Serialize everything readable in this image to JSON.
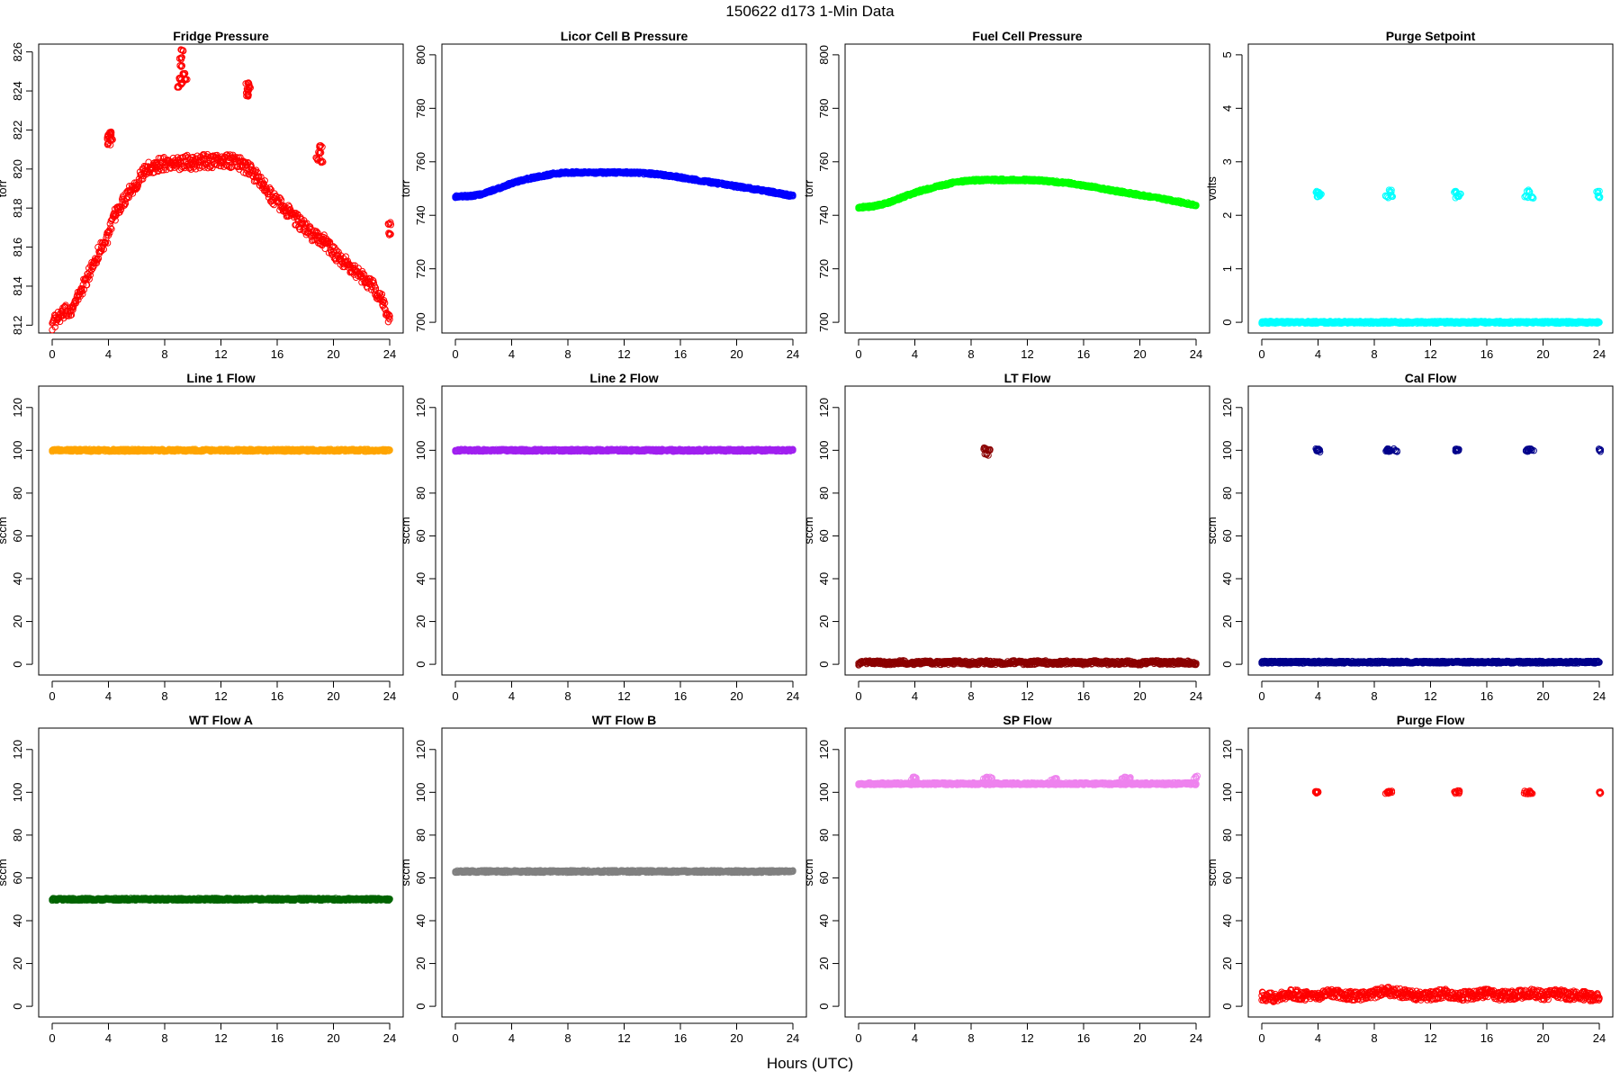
{
  "figure": {
    "title": "150622 d173 1-Min Data",
    "xlabel": "Hours (UTC)"
  },
  "chart_data": [
    {
      "type": "scatter",
      "title": "Fridge Pressure",
      "ylabel": "torr",
      "xlim": [
        0,
        24
      ],
      "ylim": [
        811.6,
        826.4
      ],
      "xticks": [
        0,
        4,
        8,
        12,
        16,
        20,
        24
      ],
      "yticks": [
        812,
        814,
        816,
        818,
        820,
        822,
        824,
        826
      ],
      "color": "#ff0000",
      "marker": "open-circle",
      "series": [
        {
          "x": [
            0.0,
            0.5,
            1.0,
            1.5,
            2.0,
            2.5,
            3.0,
            3.5,
            4.0,
            4.5,
            5.0,
            5.5,
            6.0,
            6.5,
            7.0,
            7.5,
            8.0,
            8.5,
            9.0,
            9.5,
            10.0,
            10.5,
            11.0,
            11.5,
            12.0,
            12.5,
            13.0,
            13.5,
            14.0,
            14.5,
            15.0,
            15.5,
            16.0,
            16.5,
            17.0,
            17.5,
            18.0,
            18.5,
            19.0,
            19.5,
            20.0,
            20.5,
            21.0,
            21.5,
            22.0,
            22.5,
            23.0,
            23.5,
            24.0
          ],
          "y": [
            812.1,
            812.4,
            812.7,
            812.9,
            813.7,
            814.4,
            815.3,
            816.0,
            816.6,
            817.7,
            818.3,
            818.9,
            819.3,
            819.8,
            820.1,
            820.2,
            820.3,
            820.3,
            820.3,
            820.4,
            820.3,
            820.4,
            820.4,
            820.4,
            820.4,
            820.4,
            820.4,
            820.2,
            820.0,
            819.6,
            819.2,
            818.7,
            818.3,
            818.0,
            817.7,
            817.3,
            817.0,
            816.6,
            816.5,
            816.2,
            815.8,
            815.4,
            815.1,
            814.8,
            814.5,
            814.2,
            813.8,
            813.2,
            812.3
          ]
        },
        {
          "x": [
            4.0,
            4.05,
            4.1,
            4.15,
            4.2,
            9.0,
            9.05,
            9.1,
            9.15,
            9.2,
            9.25,
            9.4,
            9.5,
            13.8,
            13.85,
            13.9,
            13.95,
            14.0,
            18.9,
            19.0,
            19.1,
            19.2,
            24.0,
            24.0
          ],
          "y": [
            821.3,
            821.6,
            821.8,
            821.5,
            821.9,
            824.2,
            824.6,
            825.3,
            825.7,
            826.1,
            824.4,
            824.9,
            824.6,
            823.9,
            824.1,
            824.4,
            823.8,
            824.2,
            820.5,
            820.8,
            821.2,
            820.4,
            817.2,
            816.7
          ]
        }
      ]
    },
    {
      "type": "scatter",
      "title": "Licor Cell B Pressure",
      "ylabel": "torr",
      "xlim": [
        0,
        24
      ],
      "ylim": [
        696,
        804
      ],
      "xticks": [
        0,
        4,
        8,
        12,
        16,
        20,
        24
      ],
      "yticks": [
        700,
        720,
        740,
        760,
        780,
        800
      ],
      "color": "#0000ff",
      "marker": "open-circle",
      "series": [
        {
          "x": [
            0,
            1,
            2,
            3,
            4,
            5,
            6,
            7,
            8,
            9,
            10,
            11,
            12,
            13,
            14,
            15,
            16,
            17,
            18,
            19,
            20,
            21,
            22,
            23,
            24
          ],
          "y": [
            747.0,
            747.2,
            748.0,
            750.0,
            752.0,
            753.5,
            754.5,
            755.5,
            756.0,
            756.0,
            756.0,
            756.0,
            756.0,
            755.8,
            755.5,
            755.0,
            754.2,
            753.3,
            752.5,
            751.7,
            750.8,
            750.0,
            749.2,
            748.2,
            747.2
          ]
        }
      ]
    },
    {
      "type": "scatter",
      "title": "Fuel Cell Pressure",
      "ylabel": "torr",
      "xlim": [
        0,
        24
      ],
      "ylim": [
        696,
        804
      ],
      "xticks": [
        0,
        4,
        8,
        12,
        16,
        20,
        24
      ],
      "yticks": [
        700,
        720,
        740,
        760,
        780,
        800
      ],
      "color": "#00ff00",
      "marker": "open-circle",
      "series": [
        {
          "x": [
            0,
            1,
            2,
            3,
            4,
            5,
            6,
            7,
            8,
            9,
            10,
            11,
            12,
            13,
            14,
            15,
            16,
            17,
            18,
            19,
            20,
            21,
            22,
            23,
            24
          ],
          "y": [
            743.0,
            743.3,
            744.5,
            746.5,
            748.5,
            750.0,
            751.3,
            752.5,
            753.0,
            753.2,
            753.2,
            753.3,
            753.2,
            753.0,
            752.5,
            752.0,
            751.2,
            750.3,
            749.3,
            748.5,
            747.6,
            746.8,
            745.8,
            744.8,
            743.8
          ]
        }
      ]
    },
    {
      "type": "scatter",
      "title": "Purge Setpoint",
      "ylabel": "volts",
      "xlim": [
        0,
        24
      ],
      "ylim": [
        -0.2,
        5.2
      ],
      "xticks": [
        0,
        4,
        8,
        12,
        16,
        20,
        24
      ],
      "yticks": [
        0,
        1,
        2,
        3,
        4,
        5
      ],
      "color": "#00ffff",
      "marker": "open-circle",
      "series": [
        {
          "x": [
            0,
            2,
            4,
            6,
            8,
            10,
            12,
            14,
            16,
            18,
            20,
            22,
            24
          ],
          "y": [
            0,
            0,
            0,
            0,
            0,
            0,
            0,
            0,
            0,
            0,
            0,
            0,
            0
          ]
        },
        {
          "x": [
            3.9,
            4.0,
            4.1,
            8.9,
            9.1,
            9.3,
            13.8,
            13.9,
            14.0,
            18.8,
            19.0,
            19.2,
            23.9,
            24.0
          ],
          "y": [
            2.45,
            2.35,
            2.4,
            2.35,
            2.45,
            2.35,
            2.45,
            2.35,
            2.4,
            2.35,
            2.45,
            2.35,
            2.45,
            2.35
          ]
        }
      ]
    },
    {
      "type": "scatter",
      "title": "Line 1 Flow",
      "ylabel": "sccm",
      "xlim": [
        0,
        24
      ],
      "ylim": [
        -5,
        130
      ],
      "xticks": [
        0,
        4,
        8,
        12,
        16,
        20,
        24
      ],
      "yticks": [
        0,
        20,
        40,
        60,
        80,
        100,
        120
      ],
      "color": "#ffa500",
      "marker": "open-circle",
      "series": [
        {
          "x": [
            0,
            2,
            4,
            6,
            8,
            10,
            12,
            14,
            16,
            18,
            20,
            22,
            24
          ],
          "y": [
            100,
            100,
            100,
            100,
            100,
            100,
            100,
            100,
            100,
            100,
            100,
            100,
            100
          ]
        }
      ]
    },
    {
      "type": "scatter",
      "title": "Line 2 Flow",
      "ylabel": "sccm",
      "xlim": [
        0,
        24
      ],
      "ylim": [
        -5,
        130
      ],
      "xticks": [
        0,
        4,
        8,
        12,
        16,
        20,
        24
      ],
      "yticks": [
        0,
        20,
        40,
        60,
        80,
        100,
        120
      ],
      "color": "#a020f0",
      "marker": "open-circle",
      "series": [
        {
          "x": [
            0,
            2,
            4,
            6,
            8,
            10,
            12,
            14,
            16,
            18,
            20,
            22,
            24
          ],
          "y": [
            100,
            100,
            100,
            100,
            100,
            100,
            100,
            100,
            100,
            100,
            100,
            100,
            100
          ]
        }
      ]
    },
    {
      "type": "scatter",
      "title": "LT Flow",
      "ylabel": "sccm",
      "xlim": [
        0,
        24
      ],
      "ylim": [
        -5,
        130
      ],
      "xticks": [
        0,
        4,
        8,
        12,
        16,
        20,
        24
      ],
      "yticks": [
        0,
        20,
        40,
        60,
        80,
        100,
        120
      ],
      "color": "#8b0000",
      "marker": "open-circle",
      "series": [
        {
          "x": [
            0,
            1,
            2,
            3,
            4,
            5,
            6,
            7,
            8,
            9,
            10,
            11,
            12,
            13,
            14,
            15,
            16,
            17,
            18,
            19,
            20,
            21,
            22,
            23,
            24
          ],
          "y": [
            0.5,
            1,
            0.5,
            1,
            0.5,
            1,
            0.5,
            1,
            0.5,
            1,
            0.5,
            1,
            0.5,
            1,
            0.5,
            1,
            0.5,
            1,
            0.5,
            1,
            0.5,
            1,
            0.5,
            1,
            0.5
          ]
        },
        {
          "x": [
            9.0,
            9.1,
            9.2
          ],
          "y": [
            101,
            98,
            100
          ]
        }
      ]
    },
    {
      "type": "scatter",
      "title": "Cal Flow",
      "ylabel": "sccm",
      "xlim": [
        0,
        24
      ],
      "ylim": [
        -5,
        130
      ],
      "xticks": [
        0,
        4,
        8,
        12,
        16,
        20,
        24
      ],
      "yticks": [
        0,
        20,
        40,
        60,
        80,
        100,
        120
      ],
      "color": "#00008b",
      "marker": "open-circle",
      "series": [
        {
          "x": [
            0,
            2,
            4,
            6,
            8,
            10,
            12,
            14,
            16,
            18,
            20,
            22,
            24
          ],
          "y": [
            1,
            1,
            1,
            1,
            1,
            1,
            1,
            1,
            1,
            1,
            1,
            1,
            1
          ]
        },
        {
          "x": [
            3.9,
            4.0,
            4.1,
            8.9,
            9.0,
            9.1,
            9.5,
            13.8,
            14.0,
            18.8,
            19.0,
            19.2,
            24.0
          ],
          "y": [
            100,
            100,
            100,
            100,
            100,
            100,
            100,
            100,
            100,
            100,
            100,
            100,
            100
          ]
        }
      ]
    },
    {
      "type": "scatter",
      "title": "WT Flow A",
      "ylabel": "sccm",
      "xlim": [
        0,
        24
      ],
      "ylim": [
        -5,
        130
      ],
      "xticks": [
        0,
        4,
        8,
        12,
        16,
        20,
        24
      ],
      "yticks": [
        0,
        20,
        40,
        60,
        80,
        100,
        120
      ],
      "color": "#006400",
      "marker": "open-circle",
      "series": [
        {
          "x": [
            0,
            2,
            4,
            6,
            8,
            10,
            12,
            14,
            16,
            18,
            20,
            22,
            24
          ],
          "y": [
            50,
            50,
            50,
            50,
            50,
            50,
            50,
            50,
            50,
            50,
            50,
            50,
            50
          ]
        }
      ]
    },
    {
      "type": "scatter",
      "title": "WT Flow B",
      "ylabel": "sccm",
      "xlim": [
        0,
        24
      ],
      "ylim": [
        -5,
        130
      ],
      "xticks": [
        0,
        4,
        8,
        12,
        16,
        20,
        24
      ],
      "yticks": [
        0,
        20,
        40,
        60,
        80,
        100,
        120
      ],
      "color": "#808080",
      "marker": "open-circle",
      "series": [
        {
          "x": [
            0,
            2,
            4,
            6,
            8,
            10,
            12,
            14,
            16,
            18,
            20,
            22,
            24
          ],
          "y": [
            63,
            63,
            63,
            63,
            63,
            63,
            63,
            63,
            63,
            63,
            63,
            63,
            63
          ]
        }
      ]
    },
    {
      "type": "scatter",
      "title": "SP Flow",
      "ylabel": "sccm",
      "xlim": [
        0,
        24
      ],
      "ylim": [
        -5,
        130
      ],
      "xticks": [
        0,
        4,
        8,
        12,
        16,
        20,
        24
      ],
      "yticks": [
        0,
        20,
        40,
        60,
        80,
        100,
        120
      ],
      "color": "#ee82ee",
      "marker": "open-circle",
      "series": [
        {
          "x": [
            0,
            2,
            4,
            6,
            8,
            10,
            12,
            14,
            16,
            18,
            20,
            22,
            24
          ],
          "y": [
            104,
            104,
            104,
            104,
            104,
            104,
            104,
            104,
            104,
            104,
            104,
            104,
            104
          ]
        },
        {
          "x": [
            3.9,
            4.1,
            9.0,
            9.2,
            9.4,
            13.8,
            14.0,
            18.8,
            19.0,
            19.2,
            24.0
          ],
          "y": [
            106.5,
            106.5,
            106.5,
            106.5,
            106.5,
            106,
            106.5,
            106.5,
            106.5,
            106.5,
            107
          ]
        }
      ]
    },
    {
      "type": "scatter",
      "title": "Purge Flow",
      "ylabel": "sccm",
      "xlim": [
        0,
        24
      ],
      "ylim": [
        -5,
        130
      ],
      "xticks": [
        0,
        4,
        8,
        12,
        16,
        20,
        24
      ],
      "yticks": [
        0,
        20,
        40,
        60,
        80,
        100,
        120
      ],
      "color": "#ff0000",
      "marker": "open-circle",
      "series": [
        {
          "x": [
            0,
            1,
            2,
            3,
            4,
            5,
            6,
            7,
            8,
            9,
            10,
            11,
            12,
            13,
            14,
            15,
            16,
            17,
            18,
            19,
            20,
            21,
            22,
            23,
            24
          ],
          "y": [
            5,
            4,
            6,
            5,
            5,
            6,
            5,
            5,
            6,
            7,
            6,
            5,
            5,
            6,
            5,
            5,
            6,
            5,
            5,
            6,
            5,
            6,
            5,
            5,
            4
          ]
        },
        {
          "x": [
            3.9,
            4.0,
            8.9,
            9.0,
            9.1,
            13.8,
            14.0,
            18.8,
            19.0,
            19.1,
            24.0
          ],
          "y": [
            100,
            100,
            100,
            100,
            100,
            100,
            100,
            100,
            100,
            100,
            100
          ]
        }
      ]
    }
  ]
}
